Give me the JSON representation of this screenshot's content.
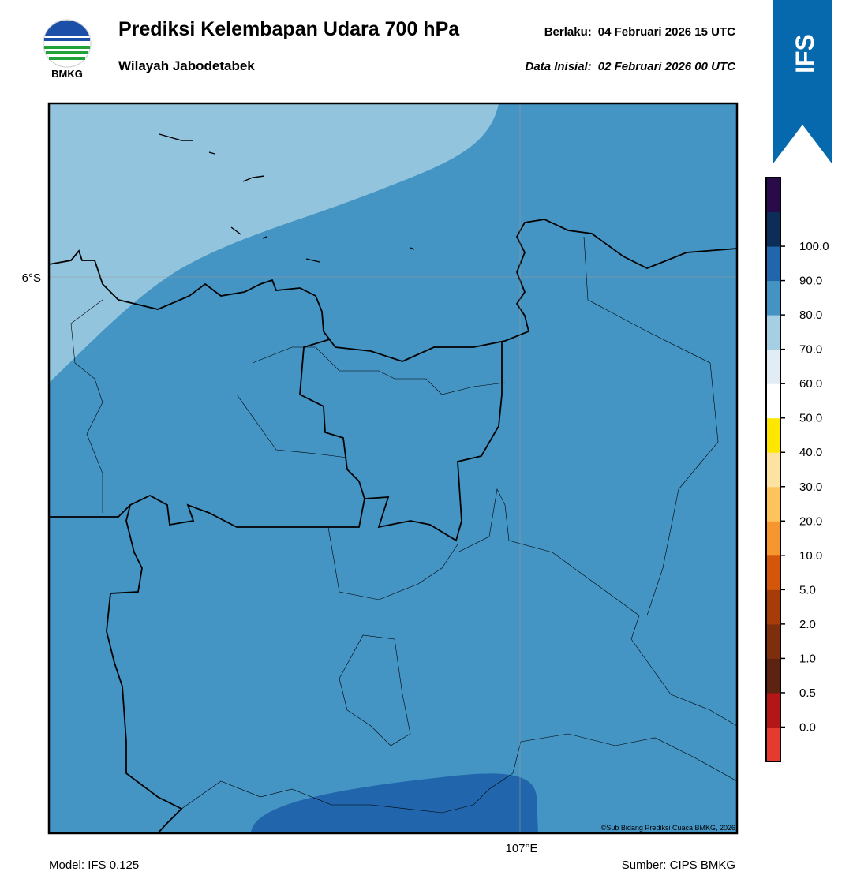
{
  "header": {
    "title": "Prediksi Kelembapan Udara 700 hPa",
    "subtitle": "Wilayah Jabodetabek",
    "valid": {
      "label": "Berlaku:",
      "value": "04 Februari 2026 15 UTC"
    },
    "init": {
      "label": "Data Inisial:",
      "value": "02 Februari 2026 00 UTC"
    },
    "logo_text": "BMKG",
    "badge": "IFS"
  },
  "map": {
    "lat_label": "6°S",
    "lon_label": "107°E",
    "copyright": "©Sub Bidang Prediksi Cuaca BMKG, 2026"
  },
  "colorbar": {
    "ticks": [
      {
        "value": 0,
        "label": "0.0"
      },
      {
        "value": 0.5,
        "label": "0.5"
      },
      {
        "value": 1,
        "label": "1.0"
      },
      {
        "value": 2,
        "label": "2.0"
      },
      {
        "value": 5,
        "label": "5.0"
      },
      {
        "value": 10,
        "label": "10.0"
      },
      {
        "value": 20,
        "label": "20.0"
      },
      {
        "value": 30,
        "label": "30.0"
      },
      {
        "value": 40,
        "label": "40.0"
      },
      {
        "value": 50,
        "label": "50.0"
      },
      {
        "value": 60,
        "label": "60.0"
      },
      {
        "value": 70,
        "label": "70.0"
      },
      {
        "value": 80,
        "label": "80.0"
      },
      {
        "value": 90,
        "label": "90.0"
      },
      {
        "value": 100,
        "label": "100.0"
      }
    ],
    "colors": [
      "#e53b2f",
      "#b21616",
      "#5c2410",
      "#7d2e0d",
      "#a63d08",
      "#d4560a",
      "#f5962f",
      "#fdc35c",
      "#fde3a2",
      "#fde700",
      "#ffffff",
      "#e1ecf4",
      "#a7cfe4",
      "#4393c3",
      "#2166ac",
      "#0b2d58",
      "#2a0b4a"
    ]
  },
  "footer": {
    "model": "Model: IFS 0.125",
    "source": "Sumber: CIPS BMKG"
  }
}
